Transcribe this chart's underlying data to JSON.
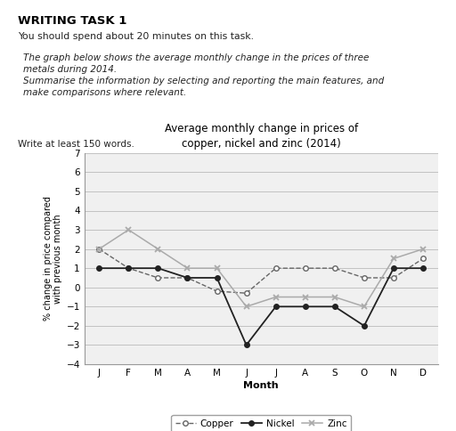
{
  "title": "Average monthly change in prices of\ncopper, nickel and zinc (2014)",
  "xlabel": "Month",
  "ylabel": "% change in price compared\nwith previous month",
  "months": [
    "J",
    "F",
    "M",
    "A",
    "M",
    "J",
    "J",
    "A",
    "S",
    "O",
    "N",
    "D"
  ],
  "copper": [
    2,
    1,
    0.5,
    0.5,
    -0.2,
    -0.3,
    1,
    1,
    1,
    0.5,
    0.5,
    1.5
  ],
  "nickel": [
    1,
    1,
    1,
    0.5,
    0.5,
    -3,
    -1,
    -1,
    -1,
    -2,
    1,
    1
  ],
  "zinc": [
    2,
    3,
    2,
    1,
    1,
    -1,
    -0.5,
    -0.5,
    -0.5,
    -1,
    1.5,
    2
  ],
  "copper_color": "#666666",
  "nickel_color": "#222222",
  "zinc_color": "#aaaaaa",
  "bg_color": "#f0f0f0",
  "ylim": [
    -4,
    7
  ],
  "yticks": [
    -4,
    -3,
    -2,
    -1,
    0,
    1,
    2,
    3,
    4,
    5,
    6,
    7
  ],
  "writing_task_title": "WRITING TASK 1",
  "subtitle1": "You should spend about 20 minutes on this task.",
  "box_text1": "The graph below shows the average monthly change in the prices of three\nmetals during 2014.",
  "box_text2": "Summarise the information by selecting and reporting the main features, and\nmake comparisons where relevant.",
  "footer_text": "Write at least 150 words."
}
